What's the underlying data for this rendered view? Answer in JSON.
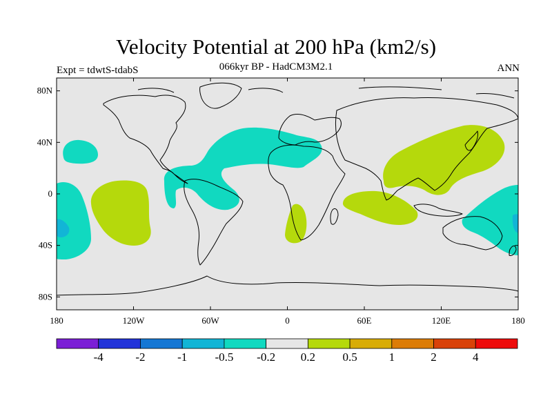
{
  "header": {
    "title": "Velocity Potential at 200 hPa (km2/s)",
    "subtitle": "066kyr BP - HadCM3M2.1",
    "left_label": "Expt = tdwtS-tdabS",
    "right_label": "ANN"
  },
  "map": {
    "projection": "cylindrical-equidistant",
    "lon_range": [
      -180,
      180
    ],
    "lat_range": [
      -90,
      90
    ],
    "lon_ticks": [
      "180",
      "120W",
      "60W",
      "0",
      "60E",
      "120E",
      "180"
    ],
    "lat_ticks": [
      "80N",
      "40N",
      "0",
      "40S",
      "80S"
    ],
    "background_color": "#e6e6e6",
    "coastline_color": "#000000"
  },
  "colorbar": {
    "colors": [
      "#7b1fd6",
      "#2233d9",
      "#1577d4",
      "#12b5d6",
      "#11d9c0",
      "#e6e6e6",
      "#b5d90c",
      "#d8ac06",
      "#dc7c06",
      "#d94209",
      "#ee0b0b"
    ],
    "labels": [
      "-4",
      "-2",
      "-1",
      "-0.5",
      "-0.2",
      "0.2",
      "0.5",
      "1",
      "2",
      "4"
    ]
  },
  "regions": [
    {
      "name": "north-pacific-negative",
      "level": "-0.5 to -0.2",
      "color": "#11d9c0"
    },
    {
      "name": "atlantic-eurasia-negative",
      "level": "-0.5 to -0.2",
      "color": "#11d9c0"
    },
    {
      "name": "southwest-pacific-negative",
      "level": "-0.5 to -0.2",
      "color": "#11d9c0"
    },
    {
      "name": "australia-negative",
      "level": "-0.5 to -0.2",
      "color": "#11d9c0"
    },
    {
      "name": "south-pacific-positive",
      "level": "0.2 to 0.5",
      "color": "#b5d90c"
    },
    {
      "name": "asia-positive",
      "level": "0.2 to 0.5",
      "color": "#b5d90c"
    },
    {
      "name": "indian-ocean-positive",
      "level": "0.2 to 0.5",
      "color": "#b5d90c"
    },
    {
      "name": "south-africa-positive",
      "level": "0.2 to 0.5",
      "color": "#b5d90c"
    }
  ]
}
